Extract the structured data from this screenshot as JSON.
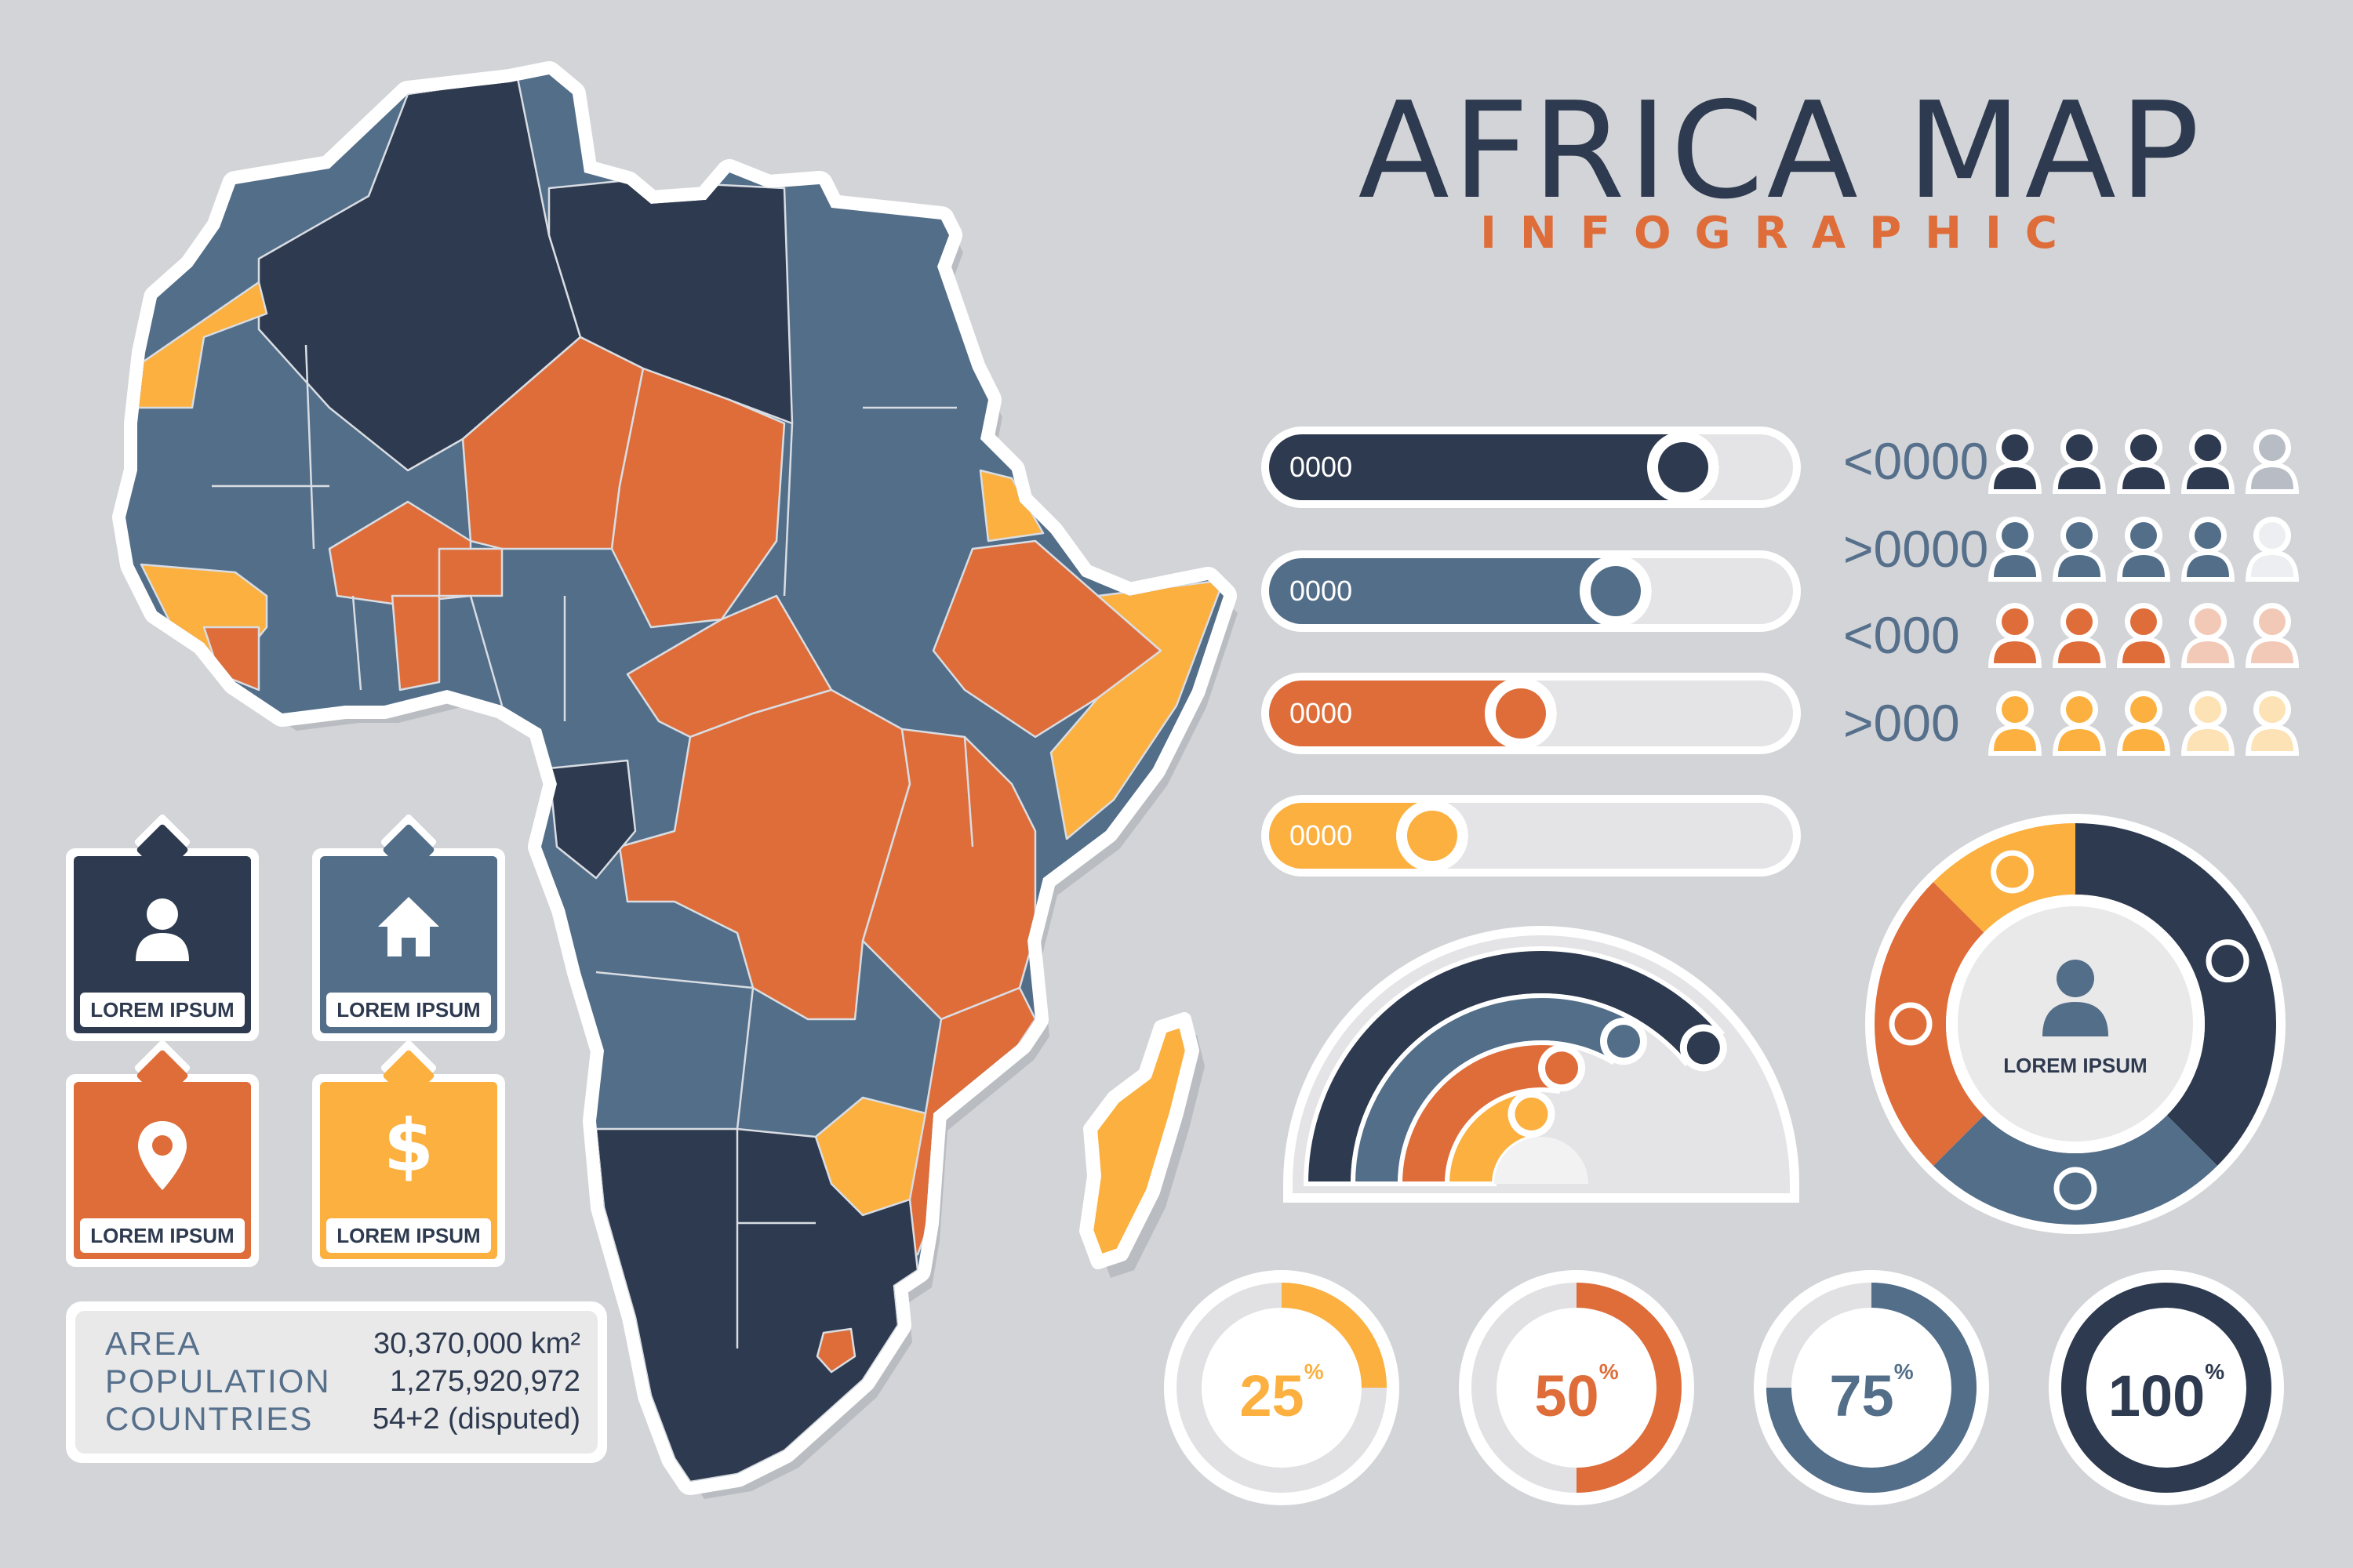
{
  "title": "AFRICA MAP",
  "subtitle": "INFOGRAPHIC",
  "colors": {
    "navy": "#2e3a4f",
    "slate": "#536e89",
    "orange": "#de6d3a",
    "yellow": "#fbb040",
    "background": "#d2d4d7"
  },
  "cards": [
    {
      "label": "LOREM IPSUM",
      "icon": "person-icon",
      "color": "#2e3a4f"
    },
    {
      "label": "LOREM IPSUM",
      "icon": "home-icon",
      "color": "#536e89"
    },
    {
      "label": "LOREM IPSUM",
      "icon": "location-pin-icon",
      "color": "#de6d3a"
    },
    {
      "label": "LOREM IPSUM",
      "icon": "dollar-icon",
      "color": "#fbb040"
    }
  ],
  "stats": {
    "area_label": "AREA",
    "area_value": "30,370,000 km²",
    "population_label": "POPULATION",
    "population_value": "1,275,920,972",
    "countries_label": "COUNTRIES",
    "countries_value": "54+2 (disputed)"
  },
  "bars": [
    {
      "label": "0000",
      "fill_fraction": 0.86,
      "color": "#2e3a4f"
    },
    {
      "label": "0000",
      "fill_fraction": 0.73,
      "color": "#536e89"
    },
    {
      "label": "0000",
      "fill_fraction": 0.55,
      "color": "#de6d3a"
    },
    {
      "label": "0000",
      "fill_fraction": 0.38,
      "color": "#fbb040"
    }
  ],
  "people_rows": [
    {
      "label": "<0000",
      "filled": 4,
      "total": 5,
      "color": "#2e3a4f",
      "light": "#b8bcc4"
    },
    {
      "label": ">0000",
      "filled": 4,
      "total": 5,
      "color": "#536e89",
      "light": "#eceef1"
    },
    {
      "label": "<000",
      "filled": 3,
      "total": 5,
      "color": "#de6d3a",
      "light": "#f2c9b6"
    },
    {
      "label": ">000",
      "filled": 3,
      "total": 5,
      "color": "#fbb040",
      "light": "#fde2b5"
    }
  ],
  "donut": {
    "label": "LOREM IPSUM",
    "icon": "person-icon",
    "segments": [
      {
        "color": "#2e3a4f",
        "fraction": 0.375
      },
      {
        "color": "#536e89",
        "fraction": 0.25
      },
      {
        "color": "#de6d3a",
        "fraction": 0.25
      },
      {
        "color": "#fbb040",
        "fraction": 0.125
      }
    ]
  },
  "semicircle": {
    "arcs": [
      {
        "color": "#2e3a4f"
      },
      {
        "color": "#536e89"
      },
      {
        "color": "#de6d3a"
      },
      {
        "color": "#fbb040"
      }
    ]
  },
  "percent_rings": [
    {
      "value": 25,
      "unit": "%",
      "color": "#fbb040",
      "text_color": "#fbb040"
    },
    {
      "value": 50,
      "unit": "%",
      "color": "#de6d3a",
      "text_color": "#de6d3a"
    },
    {
      "value": 75,
      "unit": "%",
      "color": "#536e89",
      "text_color": "#536e89"
    },
    {
      "value": 100,
      "unit": "%",
      "color": "#2e3a4f",
      "text_color": "#2e3a4f"
    }
  ]
}
